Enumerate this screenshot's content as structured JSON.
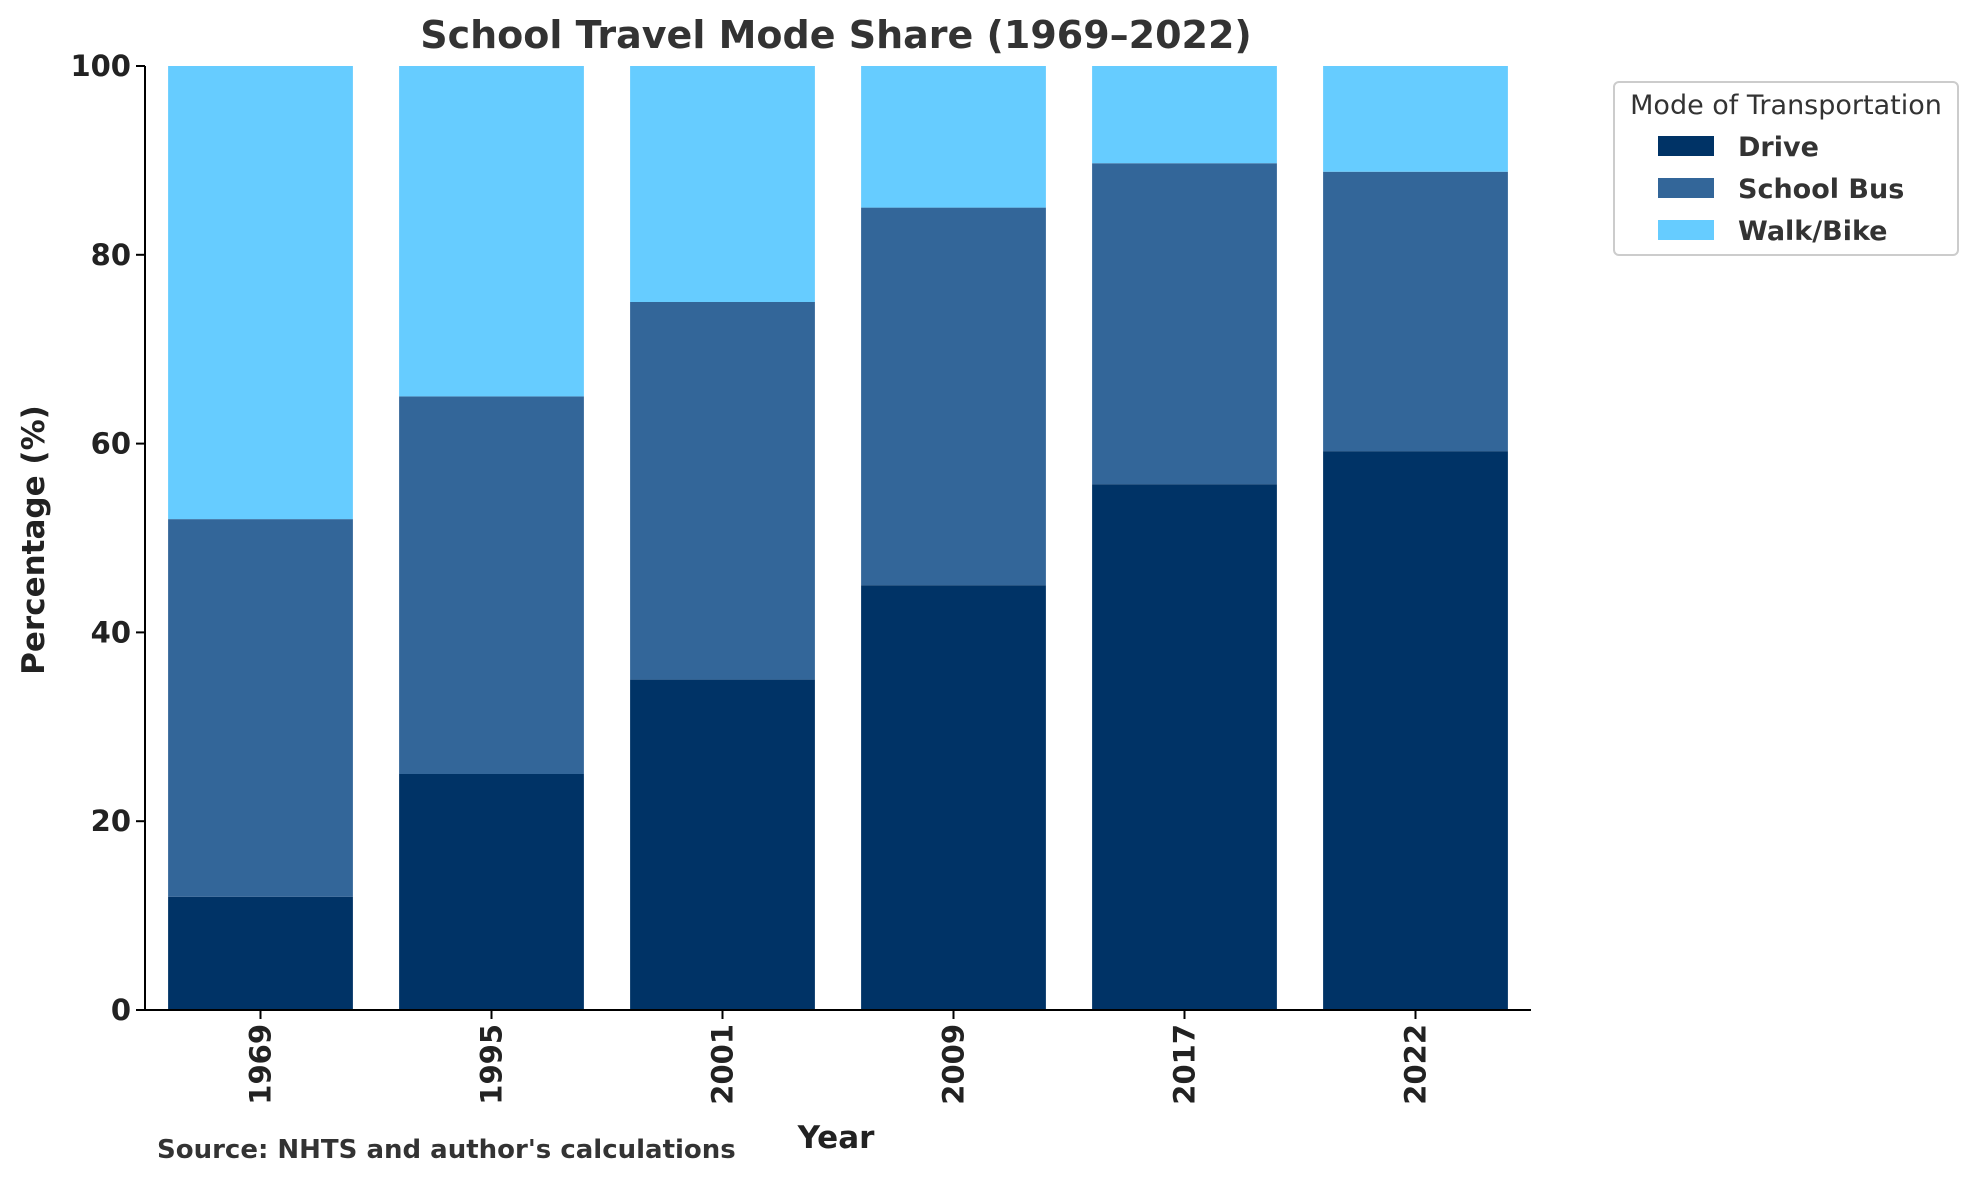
{
  "chart_data": {
    "type": "bar",
    "stacked": true,
    "title": "School Travel Mode Share (1969–2022)",
    "xlabel": "Year",
    "ylabel": "Percentage (%)",
    "ylim": [
      0,
      100
    ],
    "yticks": [
      0,
      20,
      40,
      60,
      80,
      100
    ],
    "categories": [
      "1969",
      "1995",
      "2001",
      "2009",
      "2017",
      "2022"
    ],
    "series": [
      {
        "name": "Drive",
        "color": "#003366",
        "values": [
          12,
          25,
          35,
          45,
          55.7,
          59.2
        ]
      },
      {
        "name": "School Bus",
        "color": "#336699",
        "values": [
          40,
          40,
          40,
          40,
          34.0,
          29.6
        ]
      },
      {
        "name": "Walk/Bike",
        "color": "#66CCFF",
        "values": [
          48,
          35,
          25,
          15,
          10.3,
          11.2
        ]
      }
    ],
    "legend": {
      "title": "Mode of Transportation",
      "placement": "outside-top-right"
    },
    "grid": false,
    "source_note": "Source: NHTS and author's calculations"
  }
}
